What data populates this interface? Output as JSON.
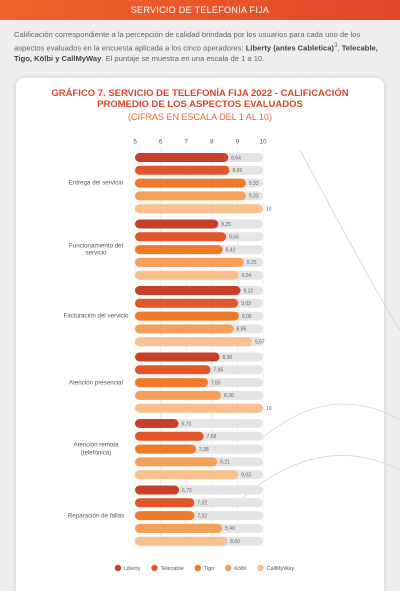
{
  "header": {
    "title": "SERVICIO DE TELEFONÍA FIJA"
  },
  "intro": {
    "text1": "Calificación correspondiente a la percepción de calidad brindada por los usuarios para cada uno de los aspectos evaluados en la encuesta aplicada a los cinco operadores: ",
    "bold1": "Liberty (antes Cabletica)",
    "footnote": "3",
    "sep": ", ",
    "bold2": "Telecable, Tigo, Kölbi y CallMyWay",
    "text2": ". El puntaje se muestra en una escala de 1 a 10."
  },
  "chart_data": {
    "type": "hbar",
    "title": "GRÁFICO 7. SERVICIO DE TELEFONÍA FIJA 2022 - CALIFICACIÓN PROMEDIO DE LOS ASPECTOS EVALUADOS",
    "subtitle": "(CIFRAS EN ESCALA DEL 1 AL 10)",
    "categories": [
      "Entrega del servicio",
      "Funcionamiento del servicio",
      "Facturación del servicio",
      "Atención presencial",
      "Atención remota (telefónica)",
      "Reparación de fallas"
    ],
    "series": [
      {
        "name": "Liberty",
        "color": "#c8402a",
        "values": [
          8.64,
          8.25,
          9.12,
          8.3,
          6.7,
          6.72
        ],
        "value_labels": [
          "8,64",
          "8,25",
          "9,12",
          "8,30",
          "6,70",
          "6,72"
        ]
      },
      {
        "name": "Telecable",
        "color": "#e2562b",
        "values": [
          8.69,
          8.56,
          9.03,
          7.95,
          7.68,
          7.32
        ],
        "value_labels": [
          "8,69",
          "8,56",
          "9,03",
          "7,95",
          "7,68",
          "7,32"
        ]
      },
      {
        "name": "Tigo",
        "color": "#f07a2a",
        "values": [
          9.33,
          8.42,
          9.06,
          7.85,
          7.38,
          7.32
        ],
        "value_labels": [
          "9,33",
          "8,42",
          "9,06",
          "7,85",
          "7,38",
          "7,32"
        ]
      },
      {
        "name": "Kölbi",
        "color": "#f4a05a",
        "values": [
          9.33,
          9.25,
          8.85,
          8.36,
          8.21,
          8.4
        ],
        "value_labels": [
          "9,33",
          "9,25",
          "8,85",
          "8,36",
          "8,21",
          "8,40"
        ]
      },
      {
        "name": "CallMyWay",
        "color": "#f7c08c",
        "values": [
          10,
          9.04,
          9.57,
          10,
          9.03,
          8.6
        ],
        "value_labels": [
          "10",
          "9,04",
          "9,57",
          "10",
          "9,03",
          "8,60"
        ]
      }
    ],
    "xlim": [
      5,
      10
    ],
    "xticks": [
      5,
      6,
      7,
      8,
      9,
      10
    ],
    "grid": true
  }
}
